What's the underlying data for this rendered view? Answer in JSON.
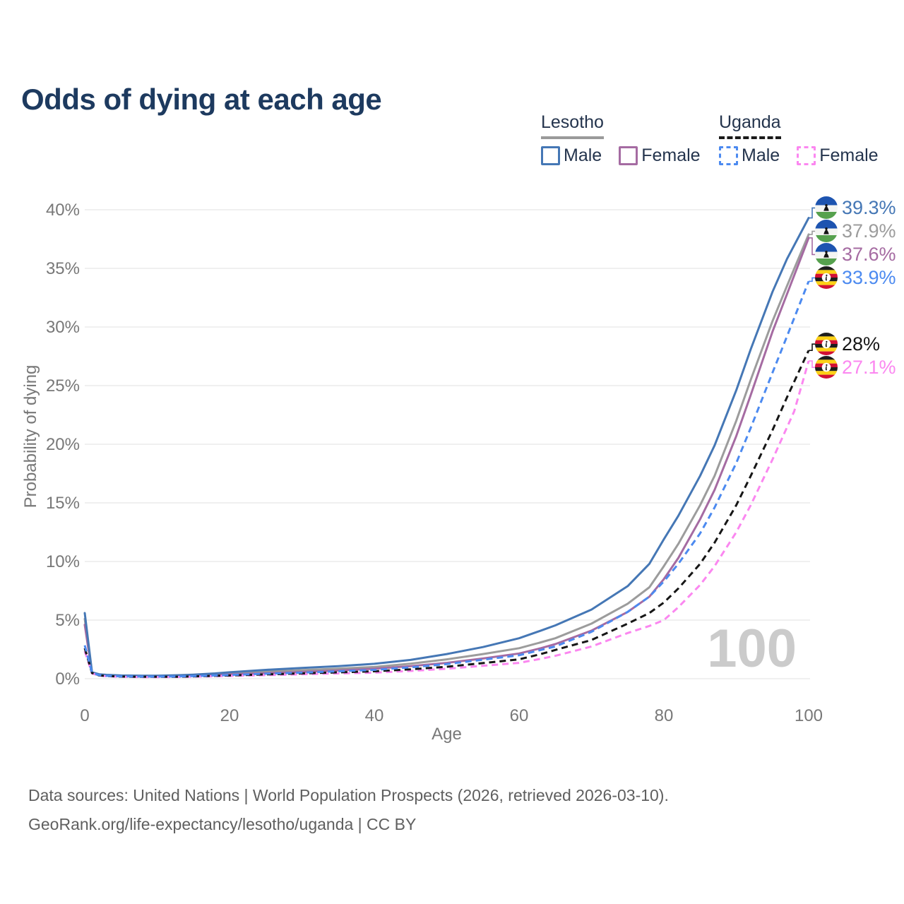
{
  "page": {
    "title": "Odds of dying at each age"
  },
  "legend": {
    "lesotho": {
      "label": "Lesotho",
      "male_label": "Male",
      "female_label": "Female"
    },
    "uganda": {
      "label": "Uganda",
      "male_label": "Male",
      "female_label": "Female"
    }
  },
  "watermark": "100",
  "footer": {
    "line1": "Data sources: United Nations | World Population Prospects (2026, retrieved 2026-03-10).",
    "line2": "GeoRank.org/life-expectancy/lesotho/uganda | CC BY"
  },
  "colors": {
    "title": "#1d3a5f",
    "lesotho_male": "#4577b5",
    "lesotho_female": "#a56ba2",
    "lesotho_both": "#9c9c9c",
    "uganda_male": "#4c8af0",
    "uganda_female": "#fb87f0",
    "uganda_both": "#161616",
    "lesotho_underline": "#9a9a9a",
    "uganda_underline": "#1a1a1a",
    "grid": "#ececec",
    "tick_text": "#787878",
    "watermark": "#cbcbcb"
  },
  "chart_data": {
    "type": "line",
    "title": "Odds of dying at each age",
    "xlabel": "Age",
    "ylabel": "Probability of dying",
    "xlim": [
      0,
      100
    ],
    "ylim_pct": [
      0,
      40
    ],
    "grid": true,
    "legend_position": "top-right",
    "x_ticks": [
      0,
      20,
      40,
      60,
      80,
      100
    ],
    "x_tick_labels": [
      "0",
      "20",
      "40",
      "60",
      "80",
      "100"
    ],
    "y_ticks_pct": [
      0,
      5,
      10,
      15,
      20,
      25,
      30,
      35,
      40
    ],
    "y_tick_labels": [
      "0%",
      "5%",
      "10%",
      "15%",
      "20%",
      "25%",
      "30%",
      "35%",
      "40%"
    ],
    "series": [
      {
        "key": "lesotho-both",
        "name": "Lesotho Both sexes",
        "country": "lesotho",
        "sex": "both",
        "style": "solid",
        "color": "#9c9c9c",
        "end_label": "37.9%",
        "points": [
          [
            0,
            5.1
          ],
          [
            1,
            0.5
          ],
          [
            2,
            0.34
          ],
          [
            3,
            0.29
          ],
          [
            5,
            0.25
          ],
          [
            8,
            0.23
          ],
          [
            10,
            0.23
          ],
          [
            13,
            0.26
          ],
          [
            15,
            0.3
          ],
          [
            18,
            0.38
          ],
          [
            20,
            0.45
          ],
          [
            25,
            0.6
          ],
          [
            30,
            0.73
          ],
          [
            35,
            0.86
          ],
          [
            40,
            1.0
          ],
          [
            45,
            1.28
          ],
          [
            50,
            1.65
          ],
          [
            55,
            2.1
          ],
          [
            60,
            2.6
          ],
          [
            63,
            3.1
          ],
          [
            65,
            3.45
          ],
          [
            70,
            4.7
          ],
          [
            75,
            6.4
          ],
          [
            78,
            7.8
          ],
          [
            80,
            9.6
          ],
          [
            82,
            11.5
          ],
          [
            85,
            14.8
          ],
          [
            87,
            17.3
          ],
          [
            90,
            22.0
          ],
          [
            92,
            25.5
          ],
          [
            95,
            30.5
          ],
          [
            97,
            33.5
          ],
          [
            100,
            37.9
          ]
        ]
      },
      {
        "key": "lesotho-female",
        "name": "Lesotho Female",
        "country": "lesotho",
        "sex": "female",
        "style": "solid",
        "color": "#a56ba2",
        "end_label": "37.6%",
        "points": [
          [
            0,
            4.6
          ],
          [
            1,
            0.46
          ],
          [
            2,
            0.3
          ],
          [
            3,
            0.26
          ],
          [
            5,
            0.22
          ],
          [
            8,
            0.2
          ],
          [
            10,
            0.2
          ],
          [
            13,
            0.22
          ],
          [
            15,
            0.25
          ],
          [
            18,
            0.31
          ],
          [
            20,
            0.36
          ],
          [
            25,
            0.47
          ],
          [
            30,
            0.57
          ],
          [
            35,
            0.7
          ],
          [
            40,
            0.85
          ],
          [
            45,
            1.07
          ],
          [
            50,
            1.35
          ],
          [
            55,
            1.72
          ],
          [
            60,
            2.15
          ],
          [
            63,
            2.6
          ],
          [
            65,
            2.95
          ],
          [
            70,
            4.1
          ],
          [
            75,
            5.7
          ],
          [
            78,
            7.0
          ],
          [
            80,
            8.5
          ],
          [
            82,
            10.3
          ],
          [
            85,
            13.6
          ],
          [
            87,
            16.1
          ],
          [
            90,
            20.7
          ],
          [
            92,
            24.2
          ],
          [
            95,
            29.6
          ],
          [
            97,
            32.8
          ],
          [
            100,
            37.6
          ]
        ]
      },
      {
        "key": "lesotho-male",
        "name": "Lesotho Male",
        "country": "lesotho",
        "sex": "male",
        "style": "solid",
        "color": "#4577b5",
        "end_label": "39.3%",
        "points": [
          [
            0,
            5.6
          ],
          [
            1,
            0.55
          ],
          [
            2,
            0.38
          ],
          [
            3,
            0.33
          ],
          [
            5,
            0.28
          ],
          [
            8,
            0.26
          ],
          [
            10,
            0.26
          ],
          [
            13,
            0.3
          ],
          [
            15,
            0.35
          ],
          [
            18,
            0.45
          ],
          [
            20,
            0.55
          ],
          [
            25,
            0.75
          ],
          [
            30,
            0.92
          ],
          [
            35,
            1.07
          ],
          [
            40,
            1.27
          ],
          [
            45,
            1.6
          ],
          [
            50,
            2.1
          ],
          [
            55,
            2.7
          ],
          [
            60,
            3.45
          ],
          [
            63,
            4.1
          ],
          [
            65,
            4.55
          ],
          [
            70,
            5.9
          ],
          [
            75,
            7.9
          ],
          [
            78,
            9.8
          ],
          [
            80,
            11.9
          ],
          [
            82,
            13.9
          ],
          [
            85,
            17.3
          ],
          [
            87,
            19.9
          ],
          [
            90,
            24.6
          ],
          [
            92,
            28.1
          ],
          [
            95,
            33.0
          ],
          [
            97,
            35.8
          ],
          [
            100,
            39.3
          ]
        ]
      },
      {
        "key": "uganda-female",
        "name": "Uganda Female",
        "country": "uganda",
        "sex": "female",
        "style": "dashed",
        "color": "#fb87f0",
        "end_label": "27.1%",
        "points": [
          [
            0,
            2.35
          ],
          [
            1,
            0.45
          ],
          [
            2,
            0.26
          ],
          [
            3,
            0.21
          ],
          [
            5,
            0.16
          ],
          [
            8,
            0.14
          ],
          [
            10,
            0.14
          ],
          [
            13,
            0.15
          ],
          [
            15,
            0.17
          ],
          [
            18,
            0.21
          ],
          [
            20,
            0.24
          ],
          [
            25,
            0.31
          ],
          [
            30,
            0.38
          ],
          [
            35,
            0.45
          ],
          [
            40,
            0.52
          ],
          [
            45,
            0.66
          ],
          [
            50,
            0.85
          ],
          [
            55,
            1.1
          ],
          [
            60,
            1.35
          ],
          [
            63,
            1.7
          ],
          [
            65,
            1.95
          ],
          [
            70,
            2.75
          ],
          [
            75,
            3.9
          ],
          [
            78,
            4.5
          ],
          [
            80,
            5.0
          ],
          [
            82,
            6.1
          ],
          [
            85,
            8.0
          ],
          [
            87,
            9.6
          ],
          [
            90,
            12.5
          ],
          [
            92,
            14.8
          ],
          [
            95,
            18.7
          ],
          [
            98,
            22.8
          ],
          [
            100,
            27.1
          ]
        ]
      },
      {
        "key": "uganda-both",
        "name": "Uganda Both sexes",
        "country": "uganda",
        "sex": "both",
        "style": "dashed",
        "color": "#161616",
        "end_label": "28%",
        "points": [
          [
            0,
            2.6
          ],
          [
            1,
            0.48
          ],
          [
            2,
            0.28
          ],
          [
            3,
            0.23
          ],
          [
            5,
            0.18
          ],
          [
            8,
            0.16
          ],
          [
            10,
            0.16
          ],
          [
            13,
            0.17
          ],
          [
            15,
            0.2
          ],
          [
            18,
            0.25
          ],
          [
            20,
            0.28
          ],
          [
            25,
            0.37
          ],
          [
            30,
            0.45
          ],
          [
            35,
            0.54
          ],
          [
            40,
            0.63
          ],
          [
            45,
            0.8
          ],
          [
            50,
            1.02
          ],
          [
            55,
            1.33
          ],
          [
            60,
            1.65
          ],
          [
            63,
            2.1
          ],
          [
            65,
            2.45
          ],
          [
            70,
            3.3
          ],
          [
            75,
            4.7
          ],
          [
            78,
            5.6
          ],
          [
            80,
            6.5
          ],
          [
            82,
            7.7
          ],
          [
            85,
            9.8
          ],
          [
            87,
            11.6
          ],
          [
            90,
            14.8
          ],
          [
            92,
            17.3
          ],
          [
            95,
            21.2
          ],
          [
            97,
            24.0
          ],
          [
            100,
            28.0
          ]
        ]
      },
      {
        "key": "uganda-male",
        "name": "Uganda Male",
        "country": "uganda",
        "sex": "male",
        "style": "dashed",
        "color": "#4c8af0",
        "end_label": "33.9%",
        "points": [
          [
            0,
            2.85
          ],
          [
            1,
            0.5
          ],
          [
            2,
            0.3
          ],
          [
            3,
            0.25
          ],
          [
            5,
            0.2
          ],
          [
            8,
            0.18
          ],
          [
            10,
            0.18
          ],
          [
            13,
            0.19
          ],
          [
            15,
            0.22
          ],
          [
            18,
            0.28
          ],
          [
            20,
            0.32
          ],
          [
            25,
            0.43
          ],
          [
            30,
            0.52
          ],
          [
            35,
            0.63
          ],
          [
            40,
            0.75
          ],
          [
            45,
            0.97
          ],
          [
            50,
            1.25
          ],
          [
            55,
            1.62
          ],
          [
            60,
            2.0
          ],
          [
            63,
            2.45
          ],
          [
            65,
            2.75
          ],
          [
            70,
            4.0
          ],
          [
            75,
            5.7
          ],
          [
            78,
            7.0
          ],
          [
            80,
            8.3
          ],
          [
            82,
            9.8
          ],
          [
            85,
            12.4
          ],
          [
            87,
            14.6
          ],
          [
            90,
            18.4
          ],
          [
            92,
            21.4
          ],
          [
            95,
            26.1
          ],
          [
            97,
            29.2
          ],
          [
            100,
            33.9
          ]
        ]
      }
    ]
  }
}
